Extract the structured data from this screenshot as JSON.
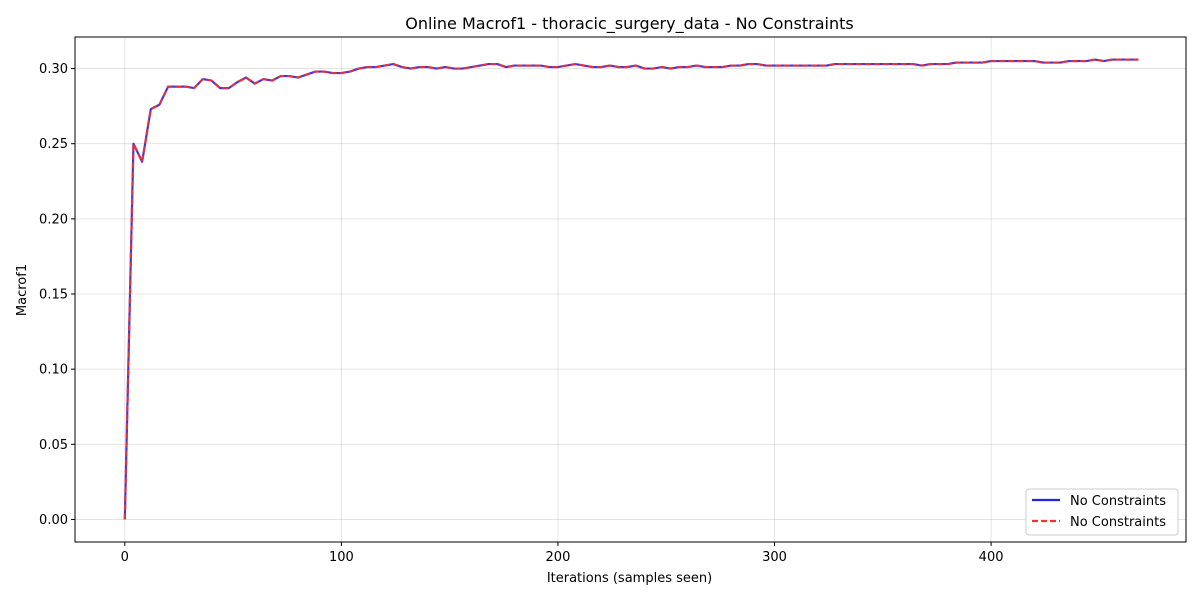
{
  "chart_data": {
    "type": "line",
    "title": "Online Macrof1 - thoracic_surgery_data - No Constraints",
    "xlabel": "Iterations (samples seen)",
    "ylabel": "Macrof1",
    "xlim": [
      -23,
      490
    ],
    "ylim": [
      -0.015,
      0.321
    ],
    "xticks": [
      0,
      100,
      200,
      300,
      400
    ],
    "yticks": [
      0.0,
      0.05,
      0.1,
      0.15,
      0.2,
      0.25,
      0.3
    ],
    "grid": true,
    "legend_position": "bottom-right",
    "x": [
      0,
      4,
      8,
      12,
      16,
      20,
      24,
      28,
      32,
      36,
      40,
      44,
      48,
      52,
      56,
      60,
      64,
      68,
      72,
      76,
      80,
      84,
      88,
      92,
      96,
      100,
      104,
      108,
      112,
      116,
      120,
      124,
      128,
      132,
      136,
      140,
      144,
      148,
      152,
      156,
      160,
      164,
      168,
      172,
      176,
      180,
      184,
      188,
      192,
      196,
      200,
      204,
      208,
      212,
      216,
      220,
      224,
      228,
      232,
      236,
      240,
      244,
      248,
      252,
      256,
      260,
      264,
      268,
      272,
      276,
      280,
      284,
      288,
      292,
      296,
      300,
      304,
      308,
      312,
      316,
      320,
      324,
      328,
      332,
      336,
      340,
      344,
      348,
      352,
      356,
      360,
      364,
      368,
      372,
      376,
      380,
      384,
      388,
      392,
      396,
      400,
      404,
      408,
      412,
      416,
      420,
      424,
      428,
      432,
      436,
      440,
      444,
      448,
      452,
      456,
      460,
      464,
      468
    ],
    "series": [
      {
        "name": "No Constraints",
        "style": "solid",
        "color": "#2323e8",
        "values": [
          0.0,
          0.25,
          0.238,
          0.273,
          0.276,
          0.288,
          0.288,
          0.288,
          0.287,
          0.293,
          0.292,
          0.287,
          0.287,
          0.291,
          0.294,
          0.29,
          0.293,
          0.292,
          0.295,
          0.295,
          0.294,
          0.296,
          0.298,
          0.298,
          0.297,
          0.297,
          0.298,
          0.3,
          0.301,
          0.301,
          0.302,
          0.303,
          0.301,
          0.3,
          0.301,
          0.301,
          0.3,
          0.301,
          0.3,
          0.3,
          0.301,
          0.302,
          0.303,
          0.303,
          0.301,
          0.302,
          0.302,
          0.302,
          0.302,
          0.301,
          0.301,
          0.302,
          0.303,
          0.302,
          0.301,
          0.301,
          0.302,
          0.301,
          0.301,
          0.302,
          0.3,
          0.3,
          0.301,
          0.3,
          0.301,
          0.301,
          0.302,
          0.301,
          0.301,
          0.301,
          0.302,
          0.302,
          0.303,
          0.303,
          0.302,
          0.302,
          0.302,
          0.302,
          0.302,
          0.302,
          0.302,
          0.302,
          0.303,
          0.303,
          0.303,
          0.303,
          0.303,
          0.303,
          0.303,
          0.303,
          0.303,
          0.303,
          0.302,
          0.303,
          0.303,
          0.303,
          0.304,
          0.304,
          0.304,
          0.304,
          0.305,
          0.305,
          0.305,
          0.305,
          0.305,
          0.305,
          0.304,
          0.304,
          0.304,
          0.305,
          0.305,
          0.305,
          0.306,
          0.305,
          0.306,
          0.306,
          0.306,
          0.306
        ]
      },
      {
        "name": "No Constraints",
        "style": "dashed",
        "color": "#f03232",
        "values": [
          0.0,
          0.25,
          0.238,
          0.273,
          0.276,
          0.288,
          0.288,
          0.288,
          0.287,
          0.293,
          0.292,
          0.287,
          0.287,
          0.291,
          0.294,
          0.29,
          0.293,
          0.292,
          0.295,
          0.295,
          0.294,
          0.296,
          0.298,
          0.298,
          0.297,
          0.297,
          0.298,
          0.3,
          0.301,
          0.301,
          0.302,
          0.303,
          0.301,
          0.3,
          0.301,
          0.301,
          0.3,
          0.301,
          0.3,
          0.3,
          0.301,
          0.302,
          0.303,
          0.303,
          0.301,
          0.302,
          0.302,
          0.302,
          0.302,
          0.301,
          0.301,
          0.302,
          0.303,
          0.302,
          0.301,
          0.301,
          0.302,
          0.301,
          0.301,
          0.302,
          0.3,
          0.3,
          0.301,
          0.3,
          0.301,
          0.301,
          0.302,
          0.301,
          0.301,
          0.301,
          0.302,
          0.302,
          0.303,
          0.303,
          0.302,
          0.302,
          0.302,
          0.302,
          0.302,
          0.302,
          0.302,
          0.302,
          0.303,
          0.303,
          0.303,
          0.303,
          0.303,
          0.303,
          0.303,
          0.303,
          0.303,
          0.303,
          0.302,
          0.303,
          0.303,
          0.303,
          0.304,
          0.304,
          0.304,
          0.304,
          0.305,
          0.305,
          0.305,
          0.305,
          0.305,
          0.305,
          0.304,
          0.304,
          0.304,
          0.305,
          0.305,
          0.305,
          0.306,
          0.305,
          0.306,
          0.306,
          0.306,
          0.306
        ]
      }
    ]
  }
}
